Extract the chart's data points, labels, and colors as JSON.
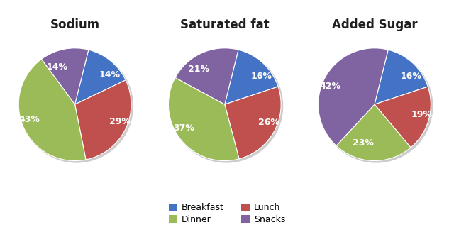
{
  "charts": [
    {
      "title": "Sodium",
      "values": [
        14,
        29,
        43,
        14
      ],
      "order": [
        "Breakfast",
        "Lunch",
        "Dinner",
        "Snacks"
      ],
      "labels": [
        "14%",
        "29%",
        "43%",
        "14%"
      ],
      "startangle": 76
    },
    {
      "title": "Saturated fat",
      "values": [
        16,
        26,
        37,
        21
      ],
      "order": [
        "Breakfast",
        "Lunch",
        "Dinner",
        "Snacks"
      ],
      "labels": [
        "16%",
        "26%",
        "37%",
        "21%"
      ],
      "startangle": 76
    },
    {
      "title": "Added Sugar",
      "values": [
        16,
        19,
        23,
        42
      ],
      "order": [
        "Breakfast",
        "Lunch",
        "Dinner",
        "Snacks"
      ],
      "labels": [
        "16%",
        "19%",
        "23%",
        "42%"
      ],
      "startangle": 76
    }
  ],
  "colors": {
    "Breakfast": "#4472C4",
    "Lunch": "#C0504D",
    "Dinner": "#9BBB59",
    "Snacks": "#8064A2"
  },
  "legend_labels": [
    "Breakfast",
    "Dinner",
    "Lunch",
    "Snacks"
  ],
  "background_color": "#FFFFFF",
  "title_fontsize": 12,
  "label_fontsize": 9
}
